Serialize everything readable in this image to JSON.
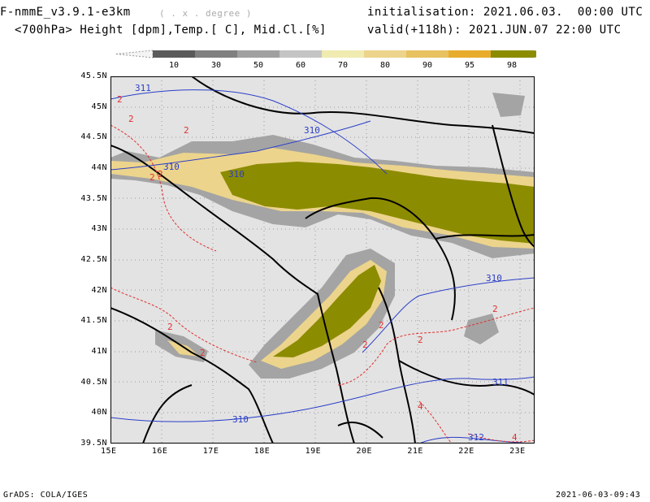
{
  "header": {
    "model_title": "F-nmmE_v3.9.1-e3km",
    "units_note": "( . x . degree )",
    "variables": "<700hPa> Height [dpm],Temp.[ C], Mid.Cl.[%]",
    "initialisation": "initialisation: 2021.06.03.  00:00 UTC",
    "valid": "valid(+118h): 2021.JUN.07 22:00 UTC"
  },
  "colorbar": {
    "labels": [
      "10",
      "30",
      "50",
      "60",
      "70",
      "80",
      "90",
      "95",
      "98"
    ],
    "colors": [
      "#5a5a5a",
      "#808080",
      "#a0a0a0",
      "#c4c4c4",
      "#f0ebb0",
      "#ecd48c",
      "#e8c260",
      "#e8ac2c",
      "#8c8c00"
    ]
  },
  "map": {
    "lat_labels": [
      "45.5N",
      "45N",
      "44.5N",
      "44N",
      "43.5N",
      "43N",
      "42.5N",
      "42N",
      "41.5N",
      "41N",
      "40.5N",
      "40N",
      "39.5N"
    ],
    "lon_labels": [
      "15E",
      "16E",
      "17E",
      "18E",
      "19E",
      "20E",
      "21E",
      "22E",
      "23E"
    ],
    "lat_range": [
      39.5,
      45.5
    ],
    "lon_range": [
      15,
      23.3
    ],
    "height_contour_labels": [
      "311",
      "310",
      "310",
      "310",
      "310",
      "311",
      "310",
      "312"
    ],
    "temp_contour_labels": [
      "2",
      "2",
      "2",
      "2",
      "2",
      "2",
      "2",
      "2",
      "2",
      "2",
      "2",
      "4",
      "4"
    ],
    "colors": {
      "land": "#e3e3e3",
      "height_contour": "#2a3ec8",
      "temp_contour": "#e03030",
      "cloud_full": "#8c8c00"
    }
  },
  "footer": {
    "left": "GrADS: COLA/IGES",
    "right": "2021-06-03-09:43"
  }
}
